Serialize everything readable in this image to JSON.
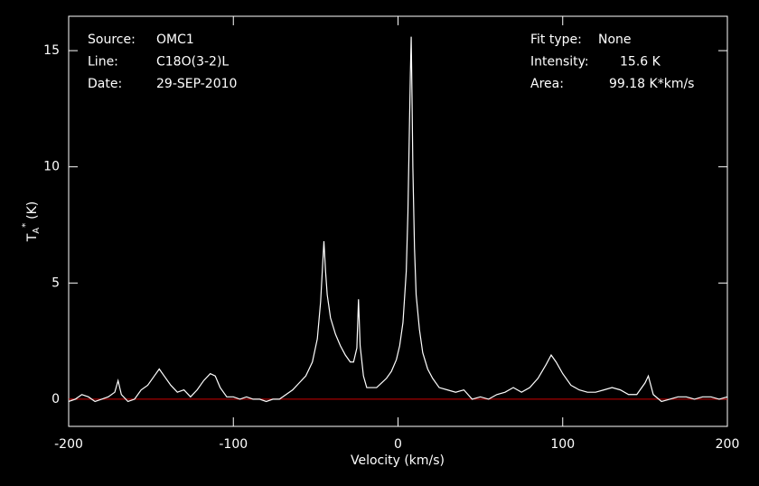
{
  "chart_data": {
    "type": "line",
    "xlabel": "Velocity (km/s)",
    "ylabel": {
      "main": "T",
      "sub": "A",
      "sup": "*",
      "unit": "(K)"
    },
    "annotations_left": [
      [
        "Source:",
        "OMC1"
      ],
      [
        "Line:",
        "C18O(3-2)L"
      ],
      [
        "Date:",
        "29-SEP-2010"
      ]
    ],
    "annotations_right": [
      [
        "Fit type:",
        "None"
      ],
      [
        "Intensity:",
        "15.6 K"
      ],
      [
        "Area:",
        "99.18 K*km/s"
      ]
    ],
    "xlim": [
      -200,
      200
    ],
    "xticks": [
      -200,
      -100,
      0,
      100,
      200
    ],
    "ylim": [
      -1.17,
      16.48
    ],
    "yticks": [
      0,
      5,
      10,
      15
    ],
    "color": "#ffffff",
    "baseline": 0,
    "baseline_color": "#cc0000",
    "x": [
      -200,
      -196,
      -192,
      -188,
      -184,
      -180,
      -176,
      -172,
      -170,
      -168,
      -164,
      -160,
      -156,
      -152,
      -148,
      -145,
      -142,
      -138,
      -134,
      -130,
      -126,
      -122,
      -118,
      -114,
      -111,
      -108,
      -104,
      -100,
      -96,
      -92,
      -88,
      -84,
      -80,
      -76,
      -72,
      -68,
      -64,
      -60,
      -56,
      -52,
      -49,
      -47,
      -46,
      -45,
      -44,
      -43,
      -41,
      -38,
      -35,
      -32,
      -29,
      -27,
      -25,
      -24,
      -23,
      -21,
      -19,
      -16,
      -13,
      -10,
      -7,
      -4,
      -1,
      1,
      3,
      5,
      6,
      7,
      7.5,
      8,
      8.5,
      9,
      10,
      11,
      13,
      15,
      18,
      21,
      25,
      30,
      35,
      40,
      45,
      50,
      55,
      60,
      65,
      70,
      75,
      80,
      85,
      90,
      93,
      96,
      100,
      105,
      110,
      115,
      120,
      125,
      130,
      135,
      140,
      145,
      150,
      152,
      155,
      160,
      165,
      170,
      175,
      180,
      185,
      190,
      195,
      200
    ],
    "values": [
      -0.1,
      0.0,
      0.2,
      0.1,
      -0.1,
      0.0,
      0.1,
      0.3,
      0.8,
      0.2,
      -0.1,
      0.0,
      0.4,
      0.6,
      1.0,
      1.3,
      1.0,
      0.6,
      0.3,
      0.4,
      0.1,
      0.4,
      0.8,
      1.1,
      1.0,
      0.5,
      0.1,
      0.1,
      0.0,
      0.1,
      0.0,
      0.0,
      -0.1,
      0.0,
      0.0,
      0.2,
      0.4,
      0.7,
      1.0,
      1.6,
      2.6,
      4.2,
      5.5,
      6.8,
      5.5,
      4.5,
      3.5,
      2.8,
      2.3,
      1.9,
      1.6,
      1.6,
      2.2,
      4.3,
      2.3,
      1.0,
      0.5,
      0.5,
      0.5,
      0.7,
      0.9,
      1.2,
      1.7,
      2.3,
      3.3,
      5.5,
      8,
      12,
      14,
      15.6,
      13,
      10,
      6.5,
      4.5,
      3.0,
      2.0,
      1.3,
      0.9,
      0.5,
      0.4,
      0.3,
      0.4,
      0.0,
      0.1,
      0.0,
      0.2,
      0.3,
      0.5,
      0.3,
      0.5,
      0.9,
      1.5,
      1.9,
      1.6,
      1.1,
      0.6,
      0.4,
      0.3,
      0.3,
      0.4,
      0.5,
      0.4,
      0.2,
      0.2,
      0.7,
      1.0,
      0.2,
      -0.1,
      0.0,
      0.1,
      0.1,
      0.0,
      0.1,
      0.1,
      0.0,
      0.1
    ]
  }
}
